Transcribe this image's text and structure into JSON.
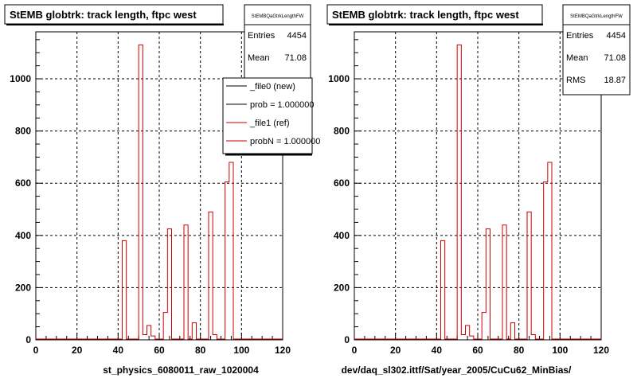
{
  "chart_data": [
    {
      "type": "step-histogram",
      "title": "StEMB globtrk: track length, ftpc west",
      "xlabel": "st_physics_6080011_raw_1020004",
      "ylabel": "",
      "xlim": [
        0,
        120
      ],
      "ylim": [
        0,
        1180
      ],
      "xticks": [
        0,
        20,
        40,
        60,
        80,
        100,
        120
      ],
      "yticks": [
        0,
        200,
        400,
        600,
        800,
        1000
      ],
      "grid": true,
      "stats": {
        "name": "StEMBQaGtrkLengthFW",
        "entries_label": "Entries",
        "entries": "4454",
        "mean_label": "Mean",
        "mean": "71.08"
      },
      "legend": {
        "placement": "top-right",
        "entries": [
          {
            "label": "_file0 (new)",
            "color": "#000000"
          },
          {
            "label": "prob = 1.000000",
            "color": "#000000"
          },
          {
            "label": "_file1 (ref)",
            "color": "#cc0000"
          },
          {
            "label": "probN = 1.000000",
            "color": "#cc0000"
          }
        ]
      },
      "series": [
        {
          "color": "#cc0000",
          "bin_width": 2,
          "bin_edges_start": 42,
          "values": [
            380,
            0,
            0,
            0,
            1130,
            20,
            55,
            15,
            0,
            0,
            105,
            425,
            0,
            0,
            0,
            440,
            0,
            65,
            0,
            0,
            0,
            490,
            20,
            0,
            0,
            605,
            680
          ]
        }
      ]
    },
    {
      "type": "step-histogram",
      "title": "StEMB globtrk: track length, ftpc west",
      "xlabel": "dev/daq_sl302.ittf/Sat/year_2005/CuCu62_MinBias/",
      "ylabel": "",
      "xlim": [
        0,
        120
      ],
      "ylim": [
        0,
        1180
      ],
      "xticks": [
        0,
        20,
        40,
        60,
        80,
        100,
        120
      ],
      "yticks": [
        0,
        200,
        400,
        600,
        800,
        1000
      ],
      "grid": true,
      "stats": {
        "name": "StEMBQaGtrkLengthFW",
        "entries_label": "Entries",
        "entries": "4454",
        "mean_label": "Mean",
        "mean": "71.08",
        "rms_label": "RMS",
        "rms": "18.87"
      },
      "series": [
        {
          "color": "#cc0000",
          "bin_width": 2,
          "bin_edges_start": 42,
          "values": [
            380,
            0,
            0,
            0,
            1130,
            20,
            55,
            15,
            0,
            0,
            105,
            425,
            0,
            0,
            0,
            440,
            0,
            65,
            0,
            0,
            0,
            490,
            20,
            0,
            0,
            605,
            680
          ]
        }
      ]
    }
  ]
}
